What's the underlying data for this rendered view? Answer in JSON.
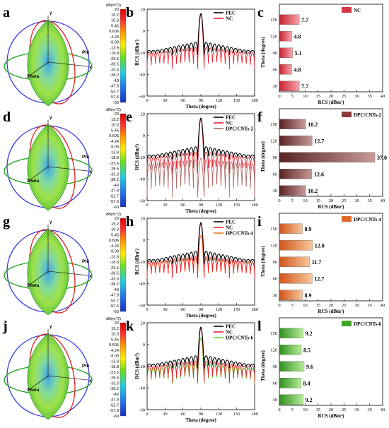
{
  "panel_letters": [
    "a",
    "b",
    "c",
    "d",
    "e",
    "f",
    "g",
    "h",
    "i",
    "j",
    "k",
    "l"
  ],
  "pattern_axes": {
    "y": "y",
    "x": "x",
    "phi": "Phi",
    "theta": "Theta"
  },
  "colorbar": {
    "unit": "dB(m^2)",
    "ticks": [
      "20",
      "15.2",
      "10.3",
      "5.45",
      "0.606",
      "-4.24",
      "-9.09",
      "-13.9",
      "-18.8",
      "-23.6",
      "-28.5",
      "-33.3",
      "-38.2",
      "-43",
      "-47.9",
      "-52.7",
      "-57.6",
      "-60"
    ]
  },
  "colors": {
    "pec": "#000000",
    "nc": "#e8222e",
    "dpc2": "#b06a6a",
    "dpc4": "#f07a22",
    "dpc6": "#5ed12a",
    "bar_nc": "#d63545",
    "bar_dpc2": "#8a3a3a",
    "bar_dpc4": "#e06a2a",
    "bar_dpc6": "#3fa326"
  },
  "chart_data": [
    {
      "type": "line",
      "panel": "b",
      "xlabel": "Theta (degree)",
      "ylabel": "RCS (dBm²)",
      "xlim": [
        0,
        180
      ],
      "ylim": [
        -60,
        20
      ],
      "xticks": [
        0,
        30,
        60,
        90,
        120,
        150,
        180
      ],
      "yticks": [
        -60,
        -40,
        -20,
        0,
        20
      ],
      "grid": false,
      "legend_position": "top-right",
      "series": [
        {
          "name": "PEC",
          "peak": 16,
          "lobe_peak": -10,
          "lobe_floor": -18,
          "null_depth": -22,
          "lobes": 12
        },
        {
          "name": "NC",
          "peak": 15,
          "lobe_peak": -15,
          "lobe_floor": -20,
          "null_depth": -35,
          "lobes": 12
        }
      ]
    },
    {
      "type": "line",
      "panel": "e",
      "xlabel": "Theta (degree)",
      "ylabel": "RCS (dBm²)",
      "xlim": [
        0,
        180
      ],
      "ylim": [
        -60,
        20
      ],
      "xticks": [
        0,
        30,
        60,
        90,
        120,
        150,
        180
      ],
      "yticks": [
        -60,
        -40,
        -20,
        0,
        20
      ],
      "grid": false,
      "legend_position": "top-right",
      "series": [
        {
          "name": "PEC",
          "peak": 16,
          "lobe_peak": -10,
          "lobe_floor": -18,
          "null_depth": -22,
          "lobes": 12
        },
        {
          "name": "NC",
          "peak": 15,
          "lobe_peak": -15,
          "lobe_floor": -20,
          "null_depth": -35,
          "lobes": 12
        },
        {
          "name": "DPC/CNTs-2",
          "peak": -21,
          "lobe_peak": -22,
          "lobe_floor": -26,
          "null_depth": -57,
          "lobes": 12
        }
      ]
    },
    {
      "type": "line",
      "panel": "h",
      "xlabel": "Theta (degree)",
      "ylabel": "RCS (dBm²)",
      "xlim": [
        0,
        180
      ],
      "ylim": [
        -60,
        20
      ],
      "xticks": [
        0,
        30,
        60,
        90,
        120,
        150,
        180
      ],
      "yticks": [
        -60,
        -40,
        -20,
        0,
        20
      ],
      "grid": false,
      "legend_position": "top-right",
      "series": [
        {
          "name": "PEC",
          "peak": 16,
          "lobe_peak": -10,
          "lobe_floor": -18,
          "null_depth": -22,
          "lobes": 12
        },
        {
          "name": "NC",
          "peak": 15,
          "lobe_peak": -15,
          "lobe_floor": -20,
          "null_depth": -35,
          "lobes": 12
        },
        {
          "name": "DPC/CNTs-4",
          "peak": 4,
          "lobe_peak": -17,
          "lobe_floor": -21,
          "null_depth": -35,
          "lobes": 12
        }
      ]
    },
    {
      "type": "line",
      "panel": "k",
      "xlabel": "Theta (degree)",
      "ylabel": "RCS (dBm²)",
      "xlim": [
        0,
        180
      ],
      "ylim": [
        -60,
        20
      ],
      "xticks": [
        0,
        30,
        60,
        90,
        120,
        150,
        180
      ],
      "yticks": [
        -60,
        -40,
        -20,
        0,
        20
      ],
      "grid": false,
      "legend_position": "top-right",
      "series": [
        {
          "name": "PEC",
          "peak": 16,
          "lobe_peak": -10,
          "lobe_floor": -18,
          "null_depth": -22,
          "lobes": 12
        },
        {
          "name": "NC",
          "peak": 15,
          "lobe_peak": -15,
          "lobe_floor": -20,
          "null_depth": -35,
          "lobes": 12
        },
        {
          "name": "DPC/CNTs-6",
          "peak": 6,
          "lobe_peak": -18,
          "lobe_floor": -22,
          "null_depth": -36,
          "lobes": 12
        }
      ]
    },
    {
      "type": "bar",
      "orientation": "horizontal",
      "panel": "c",
      "xlabel": "RCS (dBm²)",
      "ylabel": "Theta (degree)",
      "xlim": [
        0,
        40
      ],
      "xticks": [
        0,
        5,
        10,
        15,
        20,
        25,
        30,
        35,
        40
      ],
      "categories": [
        "150",
        "120",
        "90",
        "60",
        "30"
      ],
      "series": [
        {
          "name": "NC",
          "values": [
            7.7,
            4.8,
            5.1,
            4.8,
            7.7
          ]
        }
      ],
      "data_labels": [
        "7.7",
        "4.8",
        "5.1",
        "4.8",
        "7.7"
      ],
      "legend_position": "top-right"
    },
    {
      "type": "bar",
      "orientation": "horizontal",
      "panel": "f",
      "xlabel": "RCS (dBm²)",
      "ylabel": "Theta (degree)",
      "xlim": [
        0,
        40
      ],
      "xticks": [
        0,
        5,
        10,
        15,
        20,
        25,
        30,
        35,
        40
      ],
      "categories": [
        "150",
        "120",
        "90",
        "60",
        "30"
      ],
      "series": [
        {
          "name": "DPC/CNTs-2",
          "values": [
            10.2,
            12.7,
            37.0,
            12.6,
            10.2
          ]
        }
      ],
      "data_labels": [
        "10.2",
        "12.7",
        "37.0",
        "12.6",
        "10.2"
      ],
      "legend_position": "top-right"
    },
    {
      "type": "bar",
      "orientation": "horizontal",
      "panel": "i",
      "xlabel": "RCS (dBm²)",
      "ylabel": "Theta (degree)",
      "xlim": [
        0,
        40
      ],
      "xticks": [
        0,
        5,
        10,
        15,
        20,
        25,
        30,
        35,
        40
      ],
      "categories": [
        "150",
        "120",
        "90",
        "60",
        "30"
      ],
      "series": [
        {
          "name": "DPC/CNTs-4",
          "values": [
            8.9,
            12.8,
            11.7,
            12.7,
            8.9
          ]
        }
      ],
      "data_labels": [
        "8.9",
        "12.8",
        "11.7",
        "12.7",
        "8.9"
      ],
      "legend_position": "top-right"
    },
    {
      "type": "bar",
      "orientation": "horizontal",
      "panel": "l",
      "xlabel": "RCS (dBm²)",
      "ylabel": "Theta (degree)",
      "xlim": [
        0,
        40
      ],
      "xticks": [
        0,
        5,
        10,
        15,
        20,
        25,
        30,
        35,
        40
      ],
      "categories": [
        "150",
        "120",
        "90",
        "60",
        "30"
      ],
      "series": [
        {
          "name": "DPC/CNTs-6",
          "values": [
            9.2,
            8.5,
            9.6,
            8.4,
            9.2
          ]
        }
      ],
      "data_labels": [
        "9.2",
        "8.5",
        "9.6",
        "8.4",
        "9.2"
      ],
      "legend_position": "top-right"
    }
  ]
}
